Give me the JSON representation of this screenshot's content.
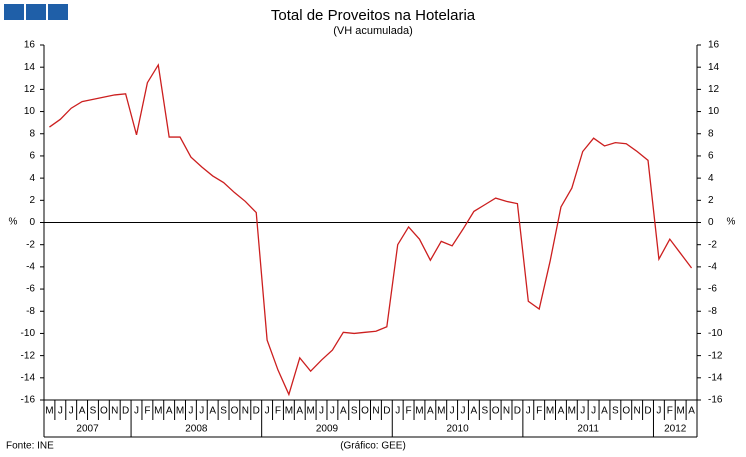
{
  "chart_data": {
    "type": "line",
    "title": "Total de Proveitos na Hotelaria",
    "subtitle": "(VH acumulada)",
    "y_label": "%",
    "source": "Fonte: INE",
    "credit": "(Gráfico: GEE)",
    "categories": [
      "M",
      "J",
      "J",
      "A",
      "S",
      "O",
      "N",
      "D",
      "J",
      "F",
      "M",
      "A",
      "M",
      "J",
      "J",
      "A",
      "S",
      "O",
      "N",
      "D",
      "J",
      "F",
      "M",
      "A",
      "M",
      "J",
      "J",
      "A",
      "S",
      "O",
      "N",
      "D",
      "J",
      "F",
      "M",
      "A",
      "M",
      "J",
      "J",
      "A",
      "S",
      "O",
      "N",
      "D",
      "J",
      "F",
      "M",
      "A",
      "M",
      "J",
      "J",
      "A",
      "S",
      "O",
      "N",
      "D",
      "J",
      "F",
      "M",
      "A"
    ],
    "years": [
      "2007",
      "2008",
      "2009",
      "2010",
      "2011",
      "2012"
    ],
    "series": [
      {
        "color": "#cc1f1f",
        "values": [
          8.6,
          9.3,
          10.3,
          10.9,
          11.1,
          11.3,
          11.5,
          11.6,
          7.9,
          12.6,
          14.2,
          7.7,
          7.7,
          5.9,
          5.0,
          4.2,
          3.6,
          2.7,
          1.9,
          0.9,
          -10.6,
          -13.3,
          -15.5,
          -12.2,
          -13.4,
          -12.4,
          -11.5,
          -9.9,
          -10.0,
          -9.9,
          -9.8,
          -9.4,
          -2.0,
          -0.4,
          -1.5,
          -3.4,
          -1.7,
          -2.1,
          -0.6,
          1.0,
          1.6,
          2.2,
          1.9,
          1.7,
          -7.1,
          -7.8,
          -3.5,
          1.4,
          3.1,
          6.4,
          7.6,
          6.9,
          7.2,
          7.1,
          6.4,
          5.6,
          -3.3,
          -1.5,
          -2.8,
          -4.1
        ]
      }
    ],
    "ylim": [
      -16,
      16
    ],
    "yticks": [
      -16,
      -14,
      -12,
      -10,
      -8,
      -6,
      -4,
      -2,
      0,
      2,
      4,
      6,
      8,
      10,
      12,
      14,
      16
    ]
  }
}
